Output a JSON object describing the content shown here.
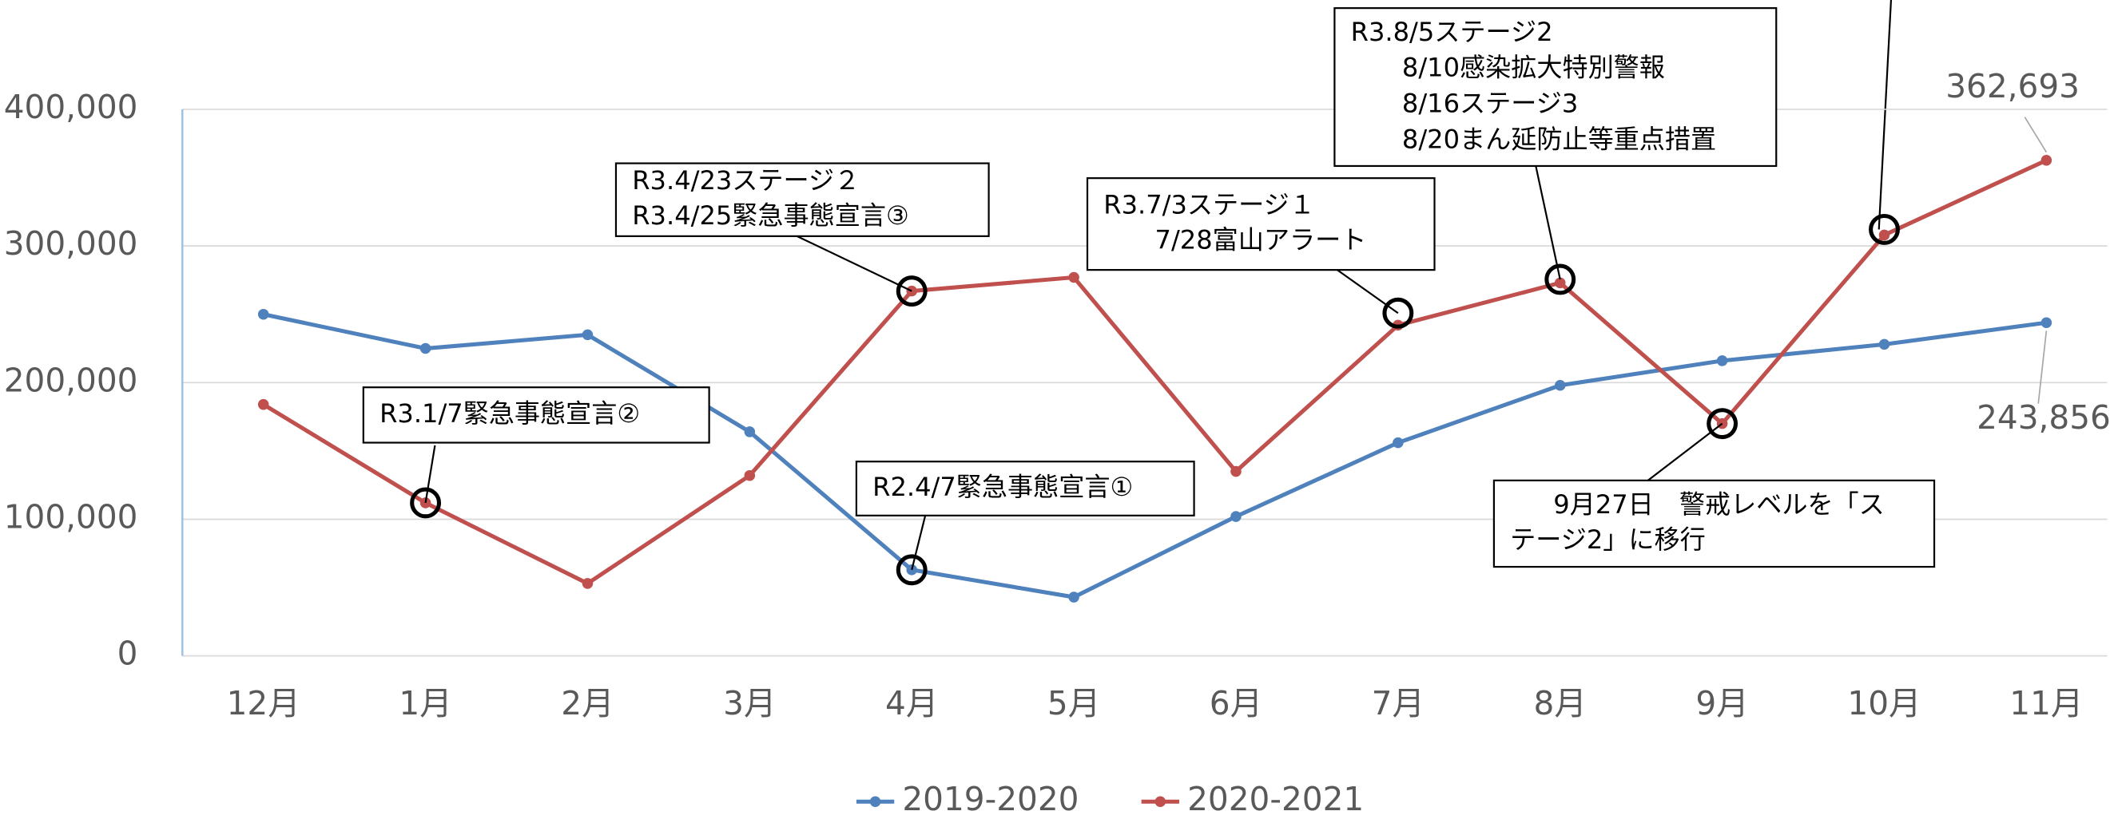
{
  "chart_data": {
    "type": "line",
    "categories": [
      "12月",
      "1月",
      "2月",
      "3月",
      "4月",
      "5月",
      "6月",
      "7月",
      "8月",
      "9月",
      "10月",
      "11月"
    ],
    "series": [
      {
        "name": "2019-2020",
        "color": "#4f81bd",
        "values": [
          250000,
          225000,
          235000,
          164000,
          63000,
          43000,
          102000,
          156000,
          198000,
          216000,
          228000,
          243856
        ],
        "value_labels": [
          null,
          null,
          null,
          null,
          null,
          null,
          null,
          null,
          null,
          null,
          null,
          "243,856"
        ]
      },
      {
        "name": "2020-2021",
        "color": "#c0504d",
        "values": [
          184000,
          112000,
          53000,
          132000,
          267000,
          277000,
          135000,
          242000,
          273000,
          170000,
          308000,
          362693
        ],
        "value_labels": [
          null,
          null,
          null,
          null,
          null,
          null,
          null,
          null,
          null,
          null,
          null,
          "362,693"
        ]
      }
    ],
    "ylim": [
      0,
      400000
    ],
    "yticks": [
      0,
      {
        "value": 100000,
        "label": "100,000"
      },
      {
        "value": 200000,
        "label": "200,000"
      },
      {
        "value": 300000,
        "label": "300,000"
      },
      {
        "value": 400000,
        "label": "400,000"
      }
    ],
    "grid": true,
    "legend": "bottom",
    "annotations": [
      {
        "lines": [
          "R3.1/7緊急事態宣言②"
        ]
      },
      {
        "lines": [
          "R2.4/7緊急事態宣言①"
        ]
      },
      {
        "lines": [
          "R3.4/23ステージ２",
          "R3.4/25緊急事態宣言③"
        ]
      },
      {
        "lines": [
          "R3.7/3ステージ１",
          "7/28富山アラート"
        ]
      },
      {
        "lines": [
          "R3.8/5ステージ2",
          "8/10感染拡大特別警報",
          "8/16ステージ3",
          "8/20まん延防止等重点措置"
        ]
      },
      {
        "lines": [
          "9月27日　警戒レベルを「ス",
          "テージ2」に移行"
        ]
      }
    ]
  }
}
